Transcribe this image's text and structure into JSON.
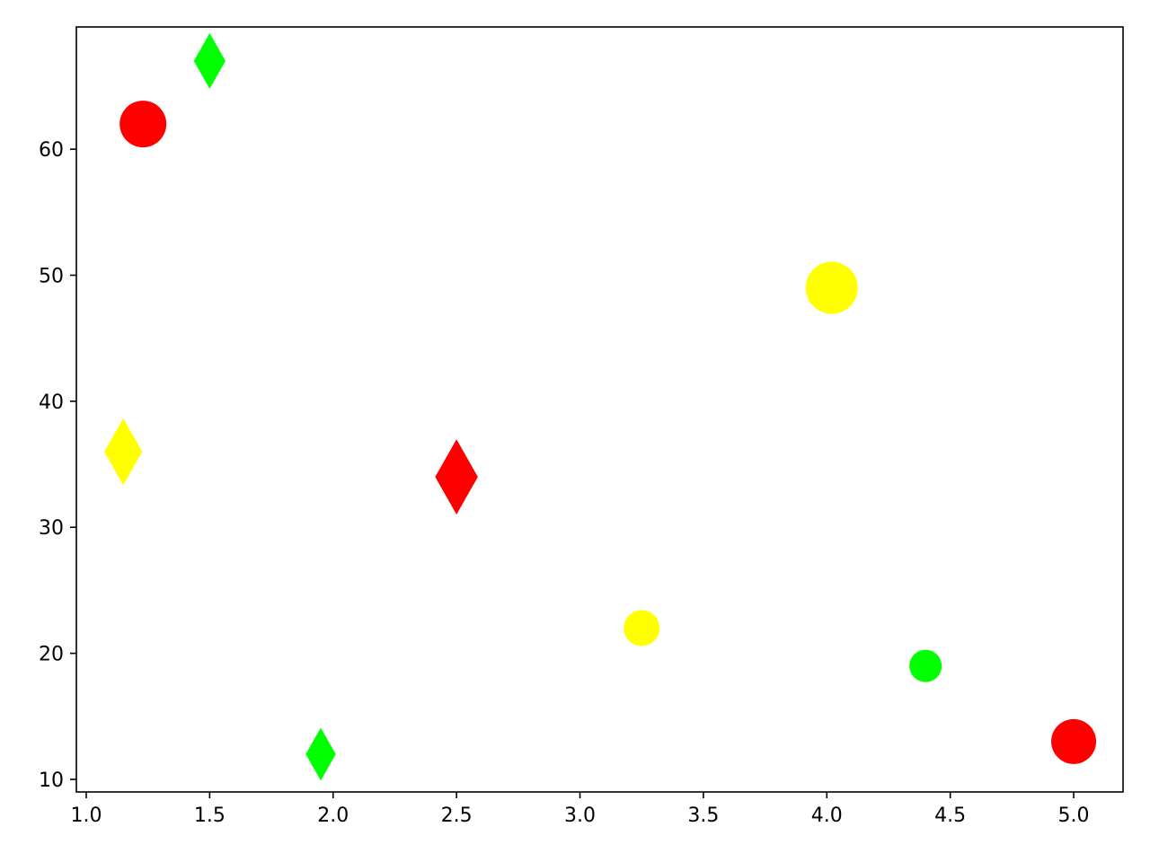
{
  "chart_data": {
    "type": "scatter",
    "title": "",
    "xlabel": "",
    "ylabel": "",
    "xlim": [
      0.96,
      5.2
    ],
    "ylim": [
      9,
      69.7
    ],
    "grid": false,
    "legend": "none",
    "x_ticks": [
      {
        "value": 1.0,
        "label": "1.0"
      },
      {
        "value": 1.5,
        "label": "1.5"
      },
      {
        "value": 2.0,
        "label": "2.0"
      },
      {
        "value": 2.5,
        "label": "2.5"
      },
      {
        "value": 3.0,
        "label": "3.0"
      },
      {
        "value": 3.5,
        "label": "3.5"
      },
      {
        "value": 4.0,
        "label": "4.0"
      },
      {
        "value": 4.5,
        "label": "4.5"
      },
      {
        "value": 5.0,
        "label": "5.0"
      }
    ],
    "y_ticks": [
      {
        "value": 10,
        "label": "10"
      },
      {
        "value": 20,
        "label": "20"
      },
      {
        "value": 30,
        "label": "30"
      },
      {
        "value": 40,
        "label": "40"
      },
      {
        "value": 50,
        "label": "50"
      },
      {
        "value": 60,
        "label": "60"
      }
    ],
    "points": [
      {
        "x": 1.23,
        "y": 62,
        "marker": "circle",
        "color": "#ff0000",
        "size": 26
      },
      {
        "x": 1.5,
        "y": 67,
        "marker": "diamond",
        "color": "#00ff00",
        "size": 20
      },
      {
        "x": 1.15,
        "y": 36,
        "marker": "diamond",
        "color": "#ffff00",
        "size": 24
      },
      {
        "x": 2.5,
        "y": 34,
        "marker": "diamond",
        "color": "#ff0000",
        "size": 27
      },
      {
        "x": 1.95,
        "y": 12,
        "marker": "diamond",
        "color": "#00ff00",
        "size": 19
      },
      {
        "x": 3.25,
        "y": 22,
        "marker": "circle",
        "color": "#ffff00",
        "size": 20
      },
      {
        "x": 4.02,
        "y": 49,
        "marker": "circle",
        "color": "#ffff00",
        "size": 29
      },
      {
        "x": 4.4,
        "y": 19,
        "marker": "circle",
        "color": "#00ff00",
        "size": 18
      },
      {
        "x": 5.0,
        "y": 13,
        "marker": "circle",
        "color": "#ff0000",
        "size": 25
      }
    ]
  }
}
